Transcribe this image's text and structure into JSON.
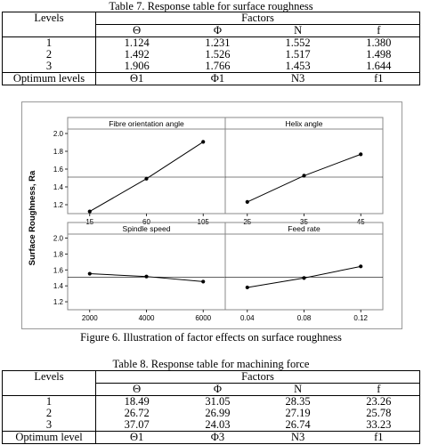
{
  "table7": {
    "caption": "Table 7. Response table for surface roughness",
    "levels_header": "Levels",
    "factors_header": "Factors",
    "factor_names": [
      "Θ",
      "Φ",
      "N",
      "f"
    ],
    "rows": [
      {
        "level": "1",
        "values": [
          "1.124",
          "1.231",
          "1.552",
          "1.380"
        ]
      },
      {
        "level": "2",
        "values": [
          "1.492",
          "1.526",
          "1.517",
          "1.498"
        ]
      },
      {
        "level": "3",
        "values": [
          "1.906",
          "1.766",
          "1.453",
          "1.644"
        ]
      }
    ],
    "optimum_label": "Optimum levels",
    "optimum": [
      "Θ1",
      "Φ1",
      "N3",
      "f1"
    ]
  },
  "figure6": {
    "caption": "Figure 6. Illustration of factor effects on surface roughness",
    "ylabel": "Surface Roughness, Ra",
    "series_color": "#000000",
    "reference_line_color": "#000000"
  },
  "chart_data": [
    {
      "type": "line",
      "title": "Fibre orientation angle",
      "x": [
        "15",
        "60",
        "105"
      ],
      "values": [
        1.124,
        1.492,
        1.906
      ],
      "yticks": [
        "1.2",
        "1.4",
        "1.6",
        "1.8",
        "2.0"
      ],
      "ylim": [
        1.1,
        2.05
      ],
      "reference_line": 1.51,
      "grid": false
    },
    {
      "type": "line",
      "title": "Helix angle",
      "x": [
        "25",
        "35",
        "45"
      ],
      "values": [
        1.231,
        1.526,
        1.766
      ],
      "ylim": [
        1.1,
        2.05
      ],
      "reference_line": 1.51,
      "grid": false
    },
    {
      "type": "line",
      "title": "Spindle speed",
      "x": [
        "2000",
        "4000",
        "6000"
      ],
      "values": [
        1.552,
        1.517,
        1.453
      ],
      "yticks": [
        "1.2",
        "1.4",
        "1.6",
        "1.8",
        "2.0"
      ],
      "ylim": [
        1.1,
        2.05
      ],
      "reference_line": 1.51,
      "grid": false
    },
    {
      "type": "line",
      "title": "Feed rate",
      "x": [
        "0.04",
        "0.08",
        "0.12"
      ],
      "values": [
        1.38,
        1.498,
        1.644
      ],
      "ylim": [
        1.1,
        2.05
      ],
      "reference_line": 1.51,
      "grid": false
    }
  ],
  "table8": {
    "caption": "Table 8. Response table for machining force",
    "levels_header": "Levels",
    "factors_header": "Factors",
    "factor_names": [
      "Θ",
      "Φ",
      "N",
      "f"
    ],
    "rows": [
      {
        "level": "1",
        "values": [
          "18.49",
          "31.05",
          "28.35",
          "23.26"
        ]
      },
      {
        "level": "2",
        "values": [
          "26.72",
          "26.99",
          "27.19",
          "25.78"
        ]
      },
      {
        "level": "3",
        "values": [
          "37.07",
          "24.03",
          "26.74",
          "33.23"
        ]
      }
    ],
    "optimum_label": "Optimum level",
    "optimum": [
      "Θ1",
      "Φ3",
      "N3",
      "f1"
    ]
  }
}
